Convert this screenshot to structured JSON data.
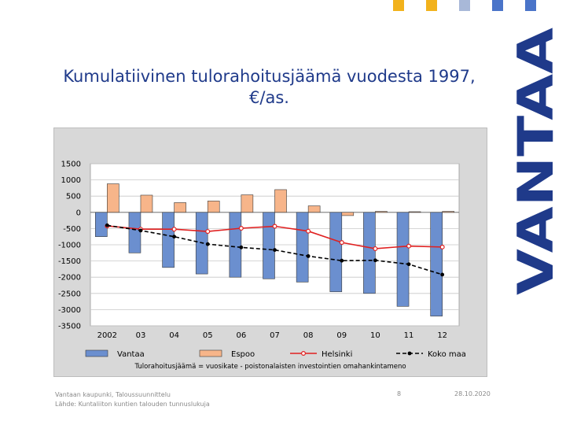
{
  "slide": {
    "title": "Kumulatiivinen tulorahoitusjäämä vuodesta 1997, €/as.",
    "brand_text": "VANTAA",
    "footer_source_line1": "Vantaan kaupunki, Taloussuunnittelu",
    "footer_source_line2": "Lähde: Kuntaliiton kuntien talouden tunnuslukuja",
    "page_number": "8",
    "date": "28.10.2020",
    "corner_colors": [
      "#f2b21c",
      "#f2b21c",
      "#a8b8d8",
      "#4a74c9",
      "#4a74c9"
    ]
  },
  "chart_data": {
    "type": "bar",
    "categories": [
      "2002",
      "03",
      "04",
      "05",
      "06",
      "07",
      "08",
      "09",
      "10",
      "11",
      "12"
    ],
    "ylim": [
      -3500,
      1500
    ],
    "yticks": [
      1500,
      1000,
      500,
      0,
      -500,
      -1000,
      -1500,
      -2000,
      -2500,
      -3000,
      -3500
    ],
    "ytick_labels": [
      "1500",
      "1000",
      "500",
      "0",
      "-500",
      "-1000",
      "-1500",
      "-2000",
      "-2500",
      "-3000",
      "-3500"
    ],
    "grid": true,
    "legend_position": "bottom",
    "footnote": "Tulorahoitusjäämä = vuosikate - poistonalaisten investointien omahankintameno",
    "series": [
      {
        "name": "Vantaa",
        "kind": "bar",
        "color": "#6b8fcf",
        "values": [
          -750,
          -1250,
          -1700,
          -1900,
          -2000,
          -2050,
          -2150,
          -2450,
          -2500,
          -2900,
          -3200
        ]
      },
      {
        "name": "Espoo",
        "kind": "bar",
        "color": "#f7b58a",
        "values": [
          880,
          530,
          300,
          350,
          540,
          700,
          200,
          -100,
          30,
          20,
          30
        ]
      },
      {
        "name": "Helsinki",
        "kind": "line",
        "color": "#e02020",
        "marker": "open-circle",
        "values": [
          -420,
          -520,
          -520,
          -590,
          -490,
          -430,
          -580,
          -930,
          -1120,
          -1040,
          -1070
        ]
      },
      {
        "name": "Koko maa",
        "kind": "line",
        "color": "#000000",
        "marker": "filled-circle",
        "dashed": true,
        "values": [
          -400,
          -560,
          -750,
          -980,
          -1080,
          -1160,
          -1350,
          -1490,
          -1480,
          -1600,
          -1920
        ]
      }
    ]
  }
}
